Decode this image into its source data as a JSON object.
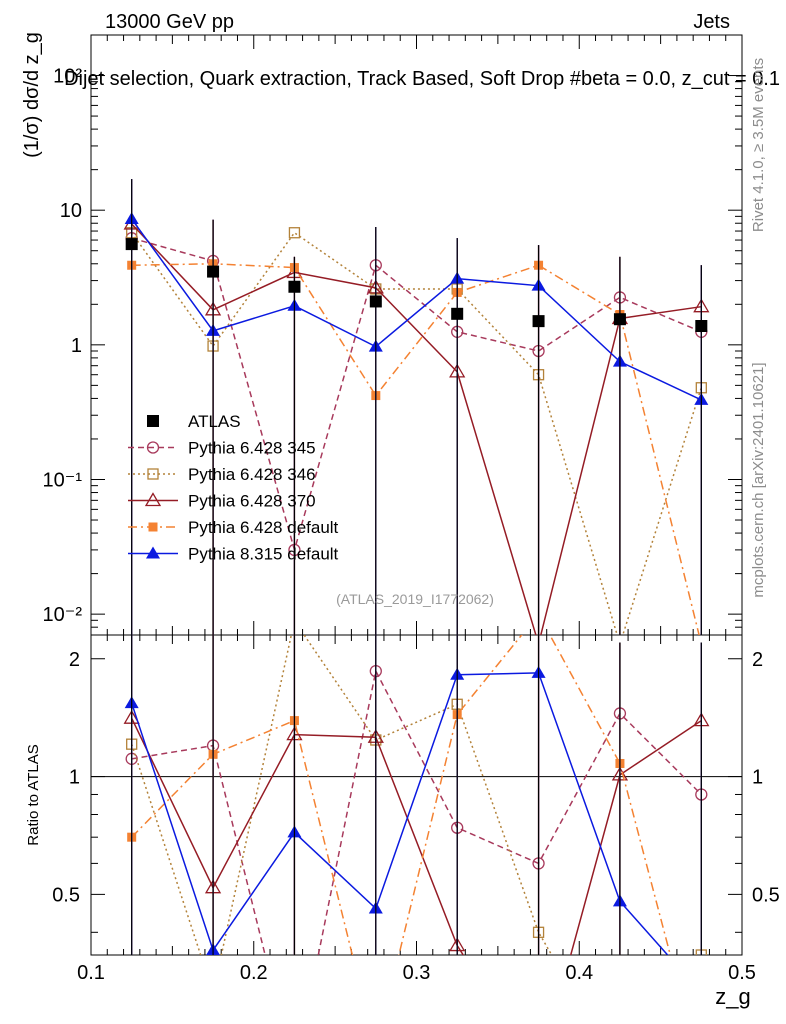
{
  "header": {
    "energy_label": "13000 GeV pp",
    "category_label": "Jets",
    "plot_title": "Dijet selection, Quark extraction, Track Based, Soft Drop #beta = 0.0, z_cut = 0.1",
    "side_label_rivet": "Rivet 4.1.0, ≥ 3.5M events",
    "side_label_mcplots": "mcplots.cern.ch [arXiv:2401.10621]",
    "analysis_id": "(ATLAS_2019_I1772062)"
  },
  "axes": {
    "main_ylabel": "(1/σ) dσ/d z_g",
    "ratio_ylabel": "Ratio to ATLAS",
    "xlabel": "z_g",
    "x_ticks": [
      "0.1",
      "0.2",
      "0.3",
      "0.4",
      "0.5"
    ],
    "main_y_ticks": [
      "10⁻²",
      "10⁻¹",
      "1",
      "10",
      "10²"
    ],
    "ratio_y_ticks": [
      "0.5",
      "1",
      "2"
    ]
  },
  "colors": {
    "atlas": "#000000",
    "p345": "#a83a5c",
    "p346": "#b38239",
    "p370": "#951c25",
    "p6def": "#f48232",
    "p8": "#0b1ae0"
  },
  "chart_data": {
    "type": "line",
    "title": "Dijet selection, Quark extraction, Track Based, Soft Drop #beta = 0.0, z_cut = 0.1",
    "xlabel": "z_g",
    "ylabel": "(1/σ) dσ/d z_g",
    "xlim": [
      0.1,
      0.5
    ],
    "ylim": [
      0.007,
      200
    ],
    "yscale": "log",
    "ratio_ylim": [
      0.35,
      2.3
    ],
    "ratio_ylabel": "Ratio to ATLAS",
    "x": [
      0.125,
      0.175,
      0.225,
      0.275,
      0.325,
      0.375,
      0.425,
      0.475
    ],
    "series": [
      {
        "name": "ATLAS",
        "key": "atlas",
        "style": "data",
        "marker": "square-filled",
        "values": [
          5.6,
          3.5,
          2.7,
          2.1,
          1.7,
          1.5,
          1.55,
          1.38
        ],
        "ratio": [
          1,
          1,
          1,
          1,
          1,
          1,
          1,
          1
        ]
      },
      {
        "name": "Pythia 6.428 345",
        "key": "p345",
        "style": "dashed",
        "marker": "circle-open",
        "values": [
          6.2,
          4.2,
          0.03,
          3.9,
          1.25,
          0.9,
          2.25,
          1.25
        ],
        "ratio": [
          1.11,
          1.2,
          0.011,
          1.86,
          0.74,
          0.6,
          1.45,
          0.9
        ]
      },
      {
        "name": "Pythia 6.428 346",
        "key": "p346",
        "style": "dotted",
        "marker": "square-open",
        "values": [
          6.8,
          0.98,
          6.8,
          2.6,
          2.6,
          0.6,
          0.006,
          0.48
        ],
        "ratio": [
          1.21,
          0.28,
          2.5,
          1.24,
          1.53,
          0.4,
          0.004,
          0.35
        ]
      },
      {
        "name": "Pythia 6.428 370",
        "key": "p370",
        "style": "solid",
        "marker": "triangle-open",
        "values": [
          7.9,
          1.82,
          3.45,
          2.65,
          0.63,
          0.006,
          1.57,
          1.92
        ],
        "ratio": [
          1.41,
          0.52,
          1.28,
          1.26,
          0.37,
          0.004,
          1.01,
          1.39
        ]
      },
      {
        "name": "Pythia 6.428 default",
        "key": "p6def",
        "style": "dashdot",
        "marker": "square-filled-small",
        "values": [
          3.9,
          4.0,
          3.75,
          0.42,
          2.45,
          3.9,
          1.68,
          0.006
        ],
        "ratio": [
          0.7,
          1.14,
          1.39,
          0.2,
          1.44,
          2.6,
          1.08,
          0.004
        ]
      },
      {
        "name": "Pythia 8.315 default",
        "key": "p8",
        "style": "solid",
        "marker": "triangle-filled",
        "values": [
          8.6,
          1.27,
          1.95,
          0.97,
          3.1,
          2.75,
          0.75,
          0.39
        ],
        "ratio": [
          1.54,
          0.36,
          0.72,
          0.46,
          1.82,
          1.84,
          0.48,
          0.28
        ]
      }
    ]
  }
}
